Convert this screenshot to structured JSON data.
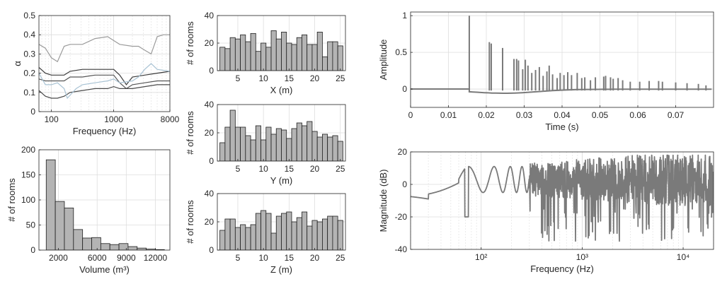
{
  "chart_data": [
    {
      "id": "absorption",
      "type": "line",
      "xlabel": "Frequency (Hz)",
      "ylabel": "α",
      "xscale": "log",
      "xlim": [
        63,
        8000
      ],
      "ylim": [
        0,
        0.5
      ],
      "xticks": [
        100,
        1000,
        8000
      ],
      "xtick_labels": [
        "100",
        "1000",
        "8000"
      ],
      "yticks": [
        0,
        0.1,
        0.2,
        0.3,
        0.4,
        0.5
      ],
      "ytick_labels": [
        "0",
        "0.1",
        "0.2",
        "0.3",
        "0.4",
        "0.5"
      ],
      "grid": true,
      "series": [
        {
          "color": "#9b9b9b",
          "points": [
            [
              63,
              0.35
            ],
            [
              80,
              0.33
            ],
            [
              100,
              0.28
            ],
            [
              125,
              0.26
            ],
            [
              160,
              0.34
            ],
            [
              200,
              0.35
            ],
            [
              315,
              0.35
            ],
            [
              500,
              0.38
            ],
            [
              800,
              0.39
            ],
            [
              1000,
              0.37
            ],
            [
              1250,
              0.35
            ],
            [
              2000,
              0.34
            ],
            [
              2500,
              0.34
            ],
            [
              3150,
              0.32
            ],
            [
              4000,
              0.3
            ],
            [
              5000,
              0.39
            ],
            [
              6300,
              0.4
            ],
            [
              8000,
              0.4
            ]
          ]
        },
        {
          "color": "#3c3c3c",
          "points": [
            [
              63,
              0.23
            ],
            [
              80,
              0.2
            ],
            [
              100,
              0.19
            ],
            [
              125,
              0.19
            ],
            [
              160,
              0.19
            ],
            [
              200,
              0.21
            ],
            [
              315,
              0.22
            ],
            [
              500,
              0.22
            ],
            [
              800,
              0.22
            ],
            [
              1000,
              0.22
            ],
            [
              1250,
              0.19
            ],
            [
              1600,
              0.14
            ],
            [
              2000,
              0.18
            ],
            [
              3150,
              0.19
            ],
            [
              5000,
              0.2
            ],
            [
              8000,
              0.21
            ]
          ]
        },
        {
          "color": "#555555",
          "points": [
            [
              63,
              0.17
            ],
            [
              80,
              0.16
            ],
            [
              100,
              0.16
            ],
            [
              125,
              0.16
            ],
            [
              160,
              0.16
            ],
            [
              200,
              0.18
            ],
            [
              315,
              0.18
            ],
            [
              500,
              0.19
            ],
            [
              800,
              0.19
            ],
            [
              1000,
              0.19
            ],
            [
              1250,
              0.15
            ],
            [
              1600,
              0.12
            ],
            [
              2000,
              0.14
            ],
            [
              3150,
              0.15
            ],
            [
              5000,
              0.16
            ],
            [
              8000,
              0.16
            ]
          ]
        },
        {
          "color": "#4a4a4a",
          "points": [
            [
              63,
              0.11
            ],
            [
              80,
              0.08
            ],
            [
              100,
              0.07
            ],
            [
              125,
              0.07
            ],
            [
              160,
              0.08
            ],
            [
              200,
              0.1
            ],
            [
              315,
              0.11
            ],
            [
              500,
              0.12
            ],
            [
              800,
              0.12
            ],
            [
              1000,
              0.13
            ],
            [
              1250,
              0.12
            ],
            [
              1600,
              0.12
            ],
            [
              2000,
              0.12
            ],
            [
              3150,
              0.13
            ],
            [
              5000,
              0.14
            ],
            [
              8000,
              0.14
            ]
          ]
        },
        {
          "color": "#a9c3d4",
          "points": [
            [
              63,
              0.2
            ],
            [
              80,
              0.14
            ],
            [
              100,
              0.14
            ],
            [
              125,
              0.15
            ],
            [
              160,
              0.12
            ],
            [
              180,
              0.07
            ],
            [
              250,
              0.12
            ],
            [
              315,
              0.14
            ],
            [
              500,
              0.15
            ],
            [
              800,
              0.16
            ],
            [
              1000,
              0.17
            ],
            [
              1250,
              0.15
            ],
            [
              2000,
              0.16
            ],
            [
              2500,
              0.18
            ],
            [
              3150,
              0.22
            ],
            [
              4000,
              0.25
            ],
            [
              5000,
              0.22
            ],
            [
              8000,
              0.21
            ]
          ]
        }
      ]
    },
    {
      "id": "volume",
      "type": "bar",
      "xlabel": "Volume (m³)",
      "ylabel": "# of rooms",
      "xlim": [
        0,
        13500
      ],
      "ylim": [
        0,
        200
      ],
      "xticks": [
        2000,
        6000,
        9000,
        12000
      ],
      "xtick_labels": [
        "2000",
        "6000",
        "9000",
        "12000"
      ],
      "yticks": [
        0,
        50,
        100,
        150,
        200
      ],
      "ytick_labels": [
        "0",
        "50",
        "100",
        "150",
        "200"
      ],
      "grid": true,
      "bin_start": 750,
      "bin_width": 937.5,
      "values": [
        180,
        97,
        84,
        41,
        24,
        25,
        13,
        11,
        13,
        7,
        4,
        2,
        1
      ]
    },
    {
      "id": "x-dim",
      "type": "bar",
      "xlabel": "X (m)",
      "ylabel": "# of rooms",
      "xlim": [
        1,
        26
      ],
      "ylim": [
        0,
        40
      ],
      "xticks": [
        5,
        10,
        15,
        20,
        25
      ],
      "xtick_labels": [
        "5",
        "10",
        "15",
        "20",
        "25"
      ],
      "yticks": [
        0,
        20,
        40
      ],
      "ytick_labels": [
        "0",
        "20",
        "40"
      ],
      "grid": true,
      "bin_start": 1.5,
      "bin_width": 1,
      "values": [
        17,
        16,
        24,
        23,
        26,
        21,
        27,
        14,
        20,
        17,
        29,
        23,
        28,
        20,
        19,
        24,
        26,
        19,
        19,
        28,
        10,
        21,
        21,
        18
      ]
    },
    {
      "id": "y-dim",
      "type": "bar",
      "xlabel": "Y (m)",
      "ylabel": "# of rooms",
      "xlim": [
        1,
        26
      ],
      "ylim": [
        0,
        40
      ],
      "xticks": [
        5,
        10,
        15,
        20,
        25
      ],
      "xtick_labels": [
        "5",
        "10",
        "15",
        "20",
        "25"
      ],
      "yticks": [
        0,
        20,
        40
      ],
      "ytick_labels": [
        "0",
        "20",
        "40"
      ],
      "grid": true,
      "bin_start": 1.5,
      "bin_width": 1,
      "values": [
        13,
        24,
        36,
        24,
        24,
        18,
        15,
        25,
        15,
        24,
        19,
        23,
        22,
        16,
        23,
        27,
        25,
        28,
        21,
        17,
        19,
        17,
        18,
        14
      ]
    },
    {
      "id": "z-dim",
      "type": "bar",
      "xlabel": "Z (m)",
      "ylabel": "# of rooms",
      "xlim": [
        1,
        26
      ],
      "ylim": [
        0,
        40
      ],
      "xticks": [
        5,
        10,
        15,
        20,
        25
      ],
      "xtick_labels": [
        "5",
        "10",
        "15",
        "20",
        "25"
      ],
      "yticks": [
        0,
        20,
        40
      ],
      "ytick_labels": [
        "0",
        "20",
        "40"
      ],
      "grid": true,
      "bin_start": 1.5,
      "bin_width": 1,
      "values": [
        14,
        22,
        22,
        16,
        18,
        16,
        18,
        26,
        28,
        26,
        12,
        24,
        26,
        27,
        20,
        23,
        27,
        17,
        21,
        20,
        22,
        24,
        24,
        21
      ]
    },
    {
      "id": "impulse-response",
      "type": "line",
      "xlabel": "Time (s)",
      "ylabel": "Amplitude",
      "xlim": [
        0,
        0.08
      ],
      "ylim": [
        -0.25,
        1.05
      ],
      "xticks": [
        0,
        0.01,
        0.02,
        0.03,
        0.04,
        0.05,
        0.06,
        0.07
      ],
      "xtick_labels": [
        "0",
        "0.01",
        "0.02",
        "0.03",
        "0.04",
        "0.05",
        "0.06",
        "0.07"
      ],
      "yticks": [
        0,
        0.5,
        1
      ],
      "ytick_labels": [
        "0",
        "0.5",
        "1"
      ],
      "grid": true,
      "color": "#7a7a7a",
      "peaks": [
        [
          0.0155,
          1.0
        ],
        [
          0.0208,
          0.64
        ],
        [
          0.0213,
          0.62
        ],
        [
          0.0243,
          0.56
        ],
        [
          0.0273,
          0.41
        ],
        [
          0.028,
          0.41
        ],
        [
          0.0285,
          0.39
        ],
        [
          0.0296,
          0.27
        ],
        [
          0.0303,
          0.4
        ],
        [
          0.031,
          0.32
        ],
        [
          0.032,
          0.22
        ],
        [
          0.033,
          0.26
        ],
        [
          0.034,
          0.3
        ],
        [
          0.035,
          0.18
        ],
        [
          0.036,
          0.24
        ],
        [
          0.0366,
          0.32
        ],
        [
          0.0375,
          0.2
        ],
        [
          0.0387,
          0.15
        ],
        [
          0.0395,
          0.22
        ],
        [
          0.0405,
          0.19
        ],
        [
          0.0415,
          0.23
        ],
        [
          0.0425,
          0.19
        ],
        [
          0.044,
          0.22
        ],
        [
          0.0452,
          0.15
        ],
        [
          0.046,
          0.16
        ],
        [
          0.0475,
          0.12
        ],
        [
          0.0488,
          0.16
        ],
        [
          0.051,
          0.17
        ],
        [
          0.0515,
          0.18
        ],
        [
          0.0528,
          0.16
        ],
        [
          0.0535,
          0.14
        ],
        [
          0.0548,
          0.15
        ],
        [
          0.056,
          0.12
        ],
        [
          0.058,
          0.1
        ],
        [
          0.0605,
          0.1
        ],
        [
          0.063,
          0.11
        ],
        [
          0.0655,
          0.11
        ],
        [
          0.0665,
          0.1
        ],
        [
          0.07,
          0.09
        ],
        [
          0.073,
          0.08
        ],
        [
          0.076,
          0.07
        ],
        [
          0.078,
          0.05
        ]
      ]
    },
    {
      "id": "magnitude-response",
      "type": "line",
      "xlabel": "Frequency (Hz)",
      "ylabel": "Magnitude (dB)",
      "xscale": "log",
      "xlim": [
        20,
        20000
      ],
      "ylim": [
        -40,
        20
      ],
      "xticks": [
        100,
        1000,
        10000
      ],
      "xtick_labels": [
        "10²",
        "10³",
        "10⁴"
      ],
      "yticks": [
        -40,
        -20,
        0,
        20
      ],
      "ytick_labels": [
        "-40",
        "-20",
        "0",
        "20"
      ],
      "grid": true,
      "color": "#7a7a7a"
    }
  ]
}
